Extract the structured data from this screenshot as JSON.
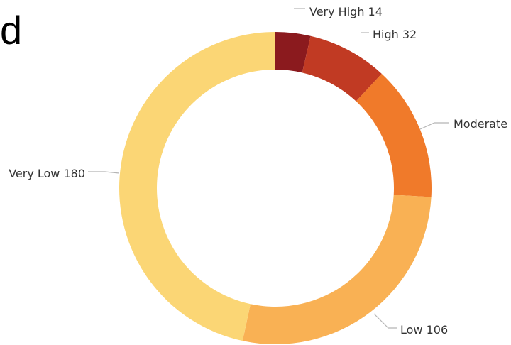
{
  "panel_label": "d",
  "chart_data": {
    "type": "pie",
    "variant": "donut",
    "title": "",
    "slices": [
      {
        "label": "Very High",
        "value": 14,
        "value_text": "14",
        "color": "#8b1a1e"
      },
      {
        "label": "High",
        "value": 32,
        "value_text": "32",
        "color": "#c13a23"
      },
      {
        "label": "Moderate",
        "value": 54,
        "value_text": "",
        "color": "#f07a2a"
      },
      {
        "label": "Low",
        "value": 106,
        "value_text": "106",
        "color": "#f9b154"
      },
      {
        "label": "Very Low",
        "value": 180,
        "value_text": "180",
        "color": "#fbd675"
      }
    ],
    "start": "top",
    "direction": "clockwise",
    "legend": "none"
  }
}
